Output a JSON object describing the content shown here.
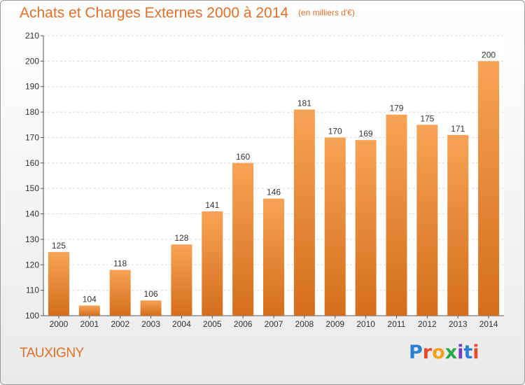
{
  "header": {
    "title": "Achats et Charges Externes 2000 à 2014",
    "subtitle": "(en milliers d'€)"
  },
  "footer": {
    "commune": "TAUXIGNY",
    "logo": "Proxiti"
  },
  "colors": {
    "accent": "#e0702a",
    "bar_top": "#f7a355",
    "bar_bottom": "#d46e1c",
    "logo_letters": [
      "#2d7fd6",
      "#e84a2a",
      "#f0a21a",
      "#29a84a",
      "#7a3fc0",
      "#2d7fd6",
      "#e84a2a"
    ]
  },
  "chart_data": {
    "type": "bar",
    "title": "Achats et Charges Externes 2000 à 2014",
    "subtitle": "(en milliers d'€)",
    "categories": [
      "2000",
      "2001",
      "2002",
      "2003",
      "2004",
      "2005",
      "2006",
      "2007",
      "2008",
      "2009",
      "2010",
      "2011",
      "2012",
      "2013",
      "2014"
    ],
    "values": [
      125,
      104,
      118,
      106,
      128,
      141,
      160,
      146,
      181,
      170,
      169,
      179,
      175,
      171,
      200
    ],
    "data_labels": [
      "125",
      "104",
      "118",
      "106",
      "128",
      "141",
      "160",
      "146",
      "181",
      "170",
      "169",
      "179",
      "175",
      "171",
      "200"
    ],
    "ylim": [
      100,
      210
    ],
    "yticks": [
      "100",
      "110",
      "120",
      "130",
      "140",
      "150",
      "160",
      "170",
      "180",
      "190",
      "200",
      "210"
    ],
    "grid": true,
    "xlabel": "",
    "ylabel": ""
  }
}
